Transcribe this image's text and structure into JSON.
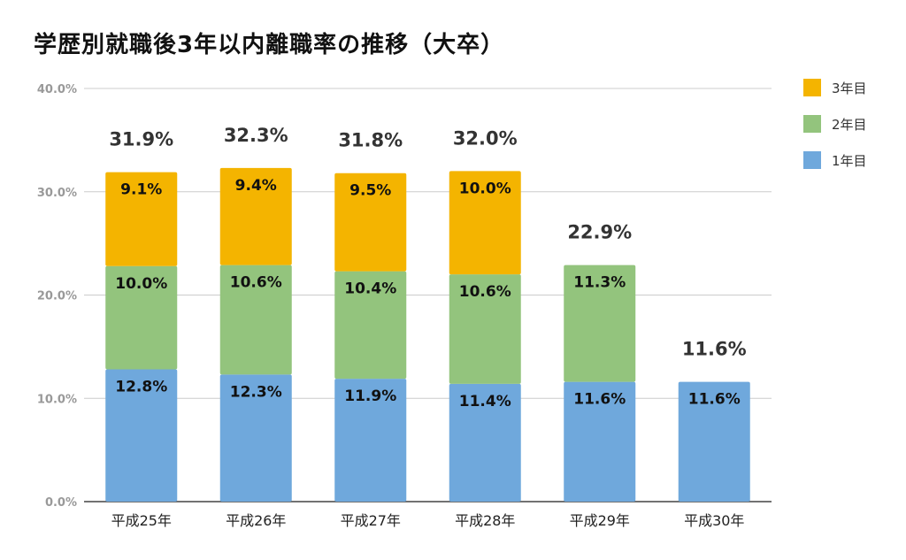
{
  "chart_data": {
    "type": "bar",
    "stacked": true,
    "title": "学歴別就職後3年以内離職率の推移（大卒）",
    "categories": [
      "平成25年",
      "平成26年",
      "平成27年",
      "平成28年",
      "平成29年",
      "平成30年"
    ],
    "series": [
      {
        "name": "1年目",
        "color": "#6fa8dc",
        "values": [
          12.8,
          12.3,
          11.9,
          11.4,
          11.6,
          11.6
        ],
        "labels": [
          "12.8%",
          "12.3%",
          "11.9%",
          "11.4%",
          "11.6%",
          "11.6%"
        ]
      },
      {
        "name": "2年目",
        "color": "#93c47d",
        "values": [
          10.0,
          10.6,
          10.4,
          10.6,
          11.3,
          null
        ],
        "labels": [
          "10.0%",
          "10.6%",
          "10.4%",
          "10.6%",
          "11.3%",
          ""
        ]
      },
      {
        "name": "3年目",
        "color": "#f4b400",
        "values": [
          9.1,
          9.4,
          9.5,
          10.0,
          null,
          null
        ],
        "labels": [
          "9.1%",
          "9.4%",
          "9.5%",
          "10.0%",
          "",
          ""
        ]
      }
    ],
    "totals": [
      "31.9%",
      "32.3%",
      "31.8%",
      "32.0%",
      "22.9%",
      "11.6%"
    ],
    "total_values": [
      31.9,
      32.3,
      31.8,
      32.0,
      22.9,
      11.6
    ],
    "ylim": [
      0,
      40
    ],
    "yticks": [
      "0.0%",
      "10.0%",
      "20.0%",
      "30.0%",
      "40.0%"
    ],
    "ytick_values": [
      0,
      10,
      20,
      30,
      40
    ],
    "grid": true,
    "legend_position": "right",
    "legend_order": [
      "3年目",
      "2年目",
      "1年目"
    ]
  }
}
